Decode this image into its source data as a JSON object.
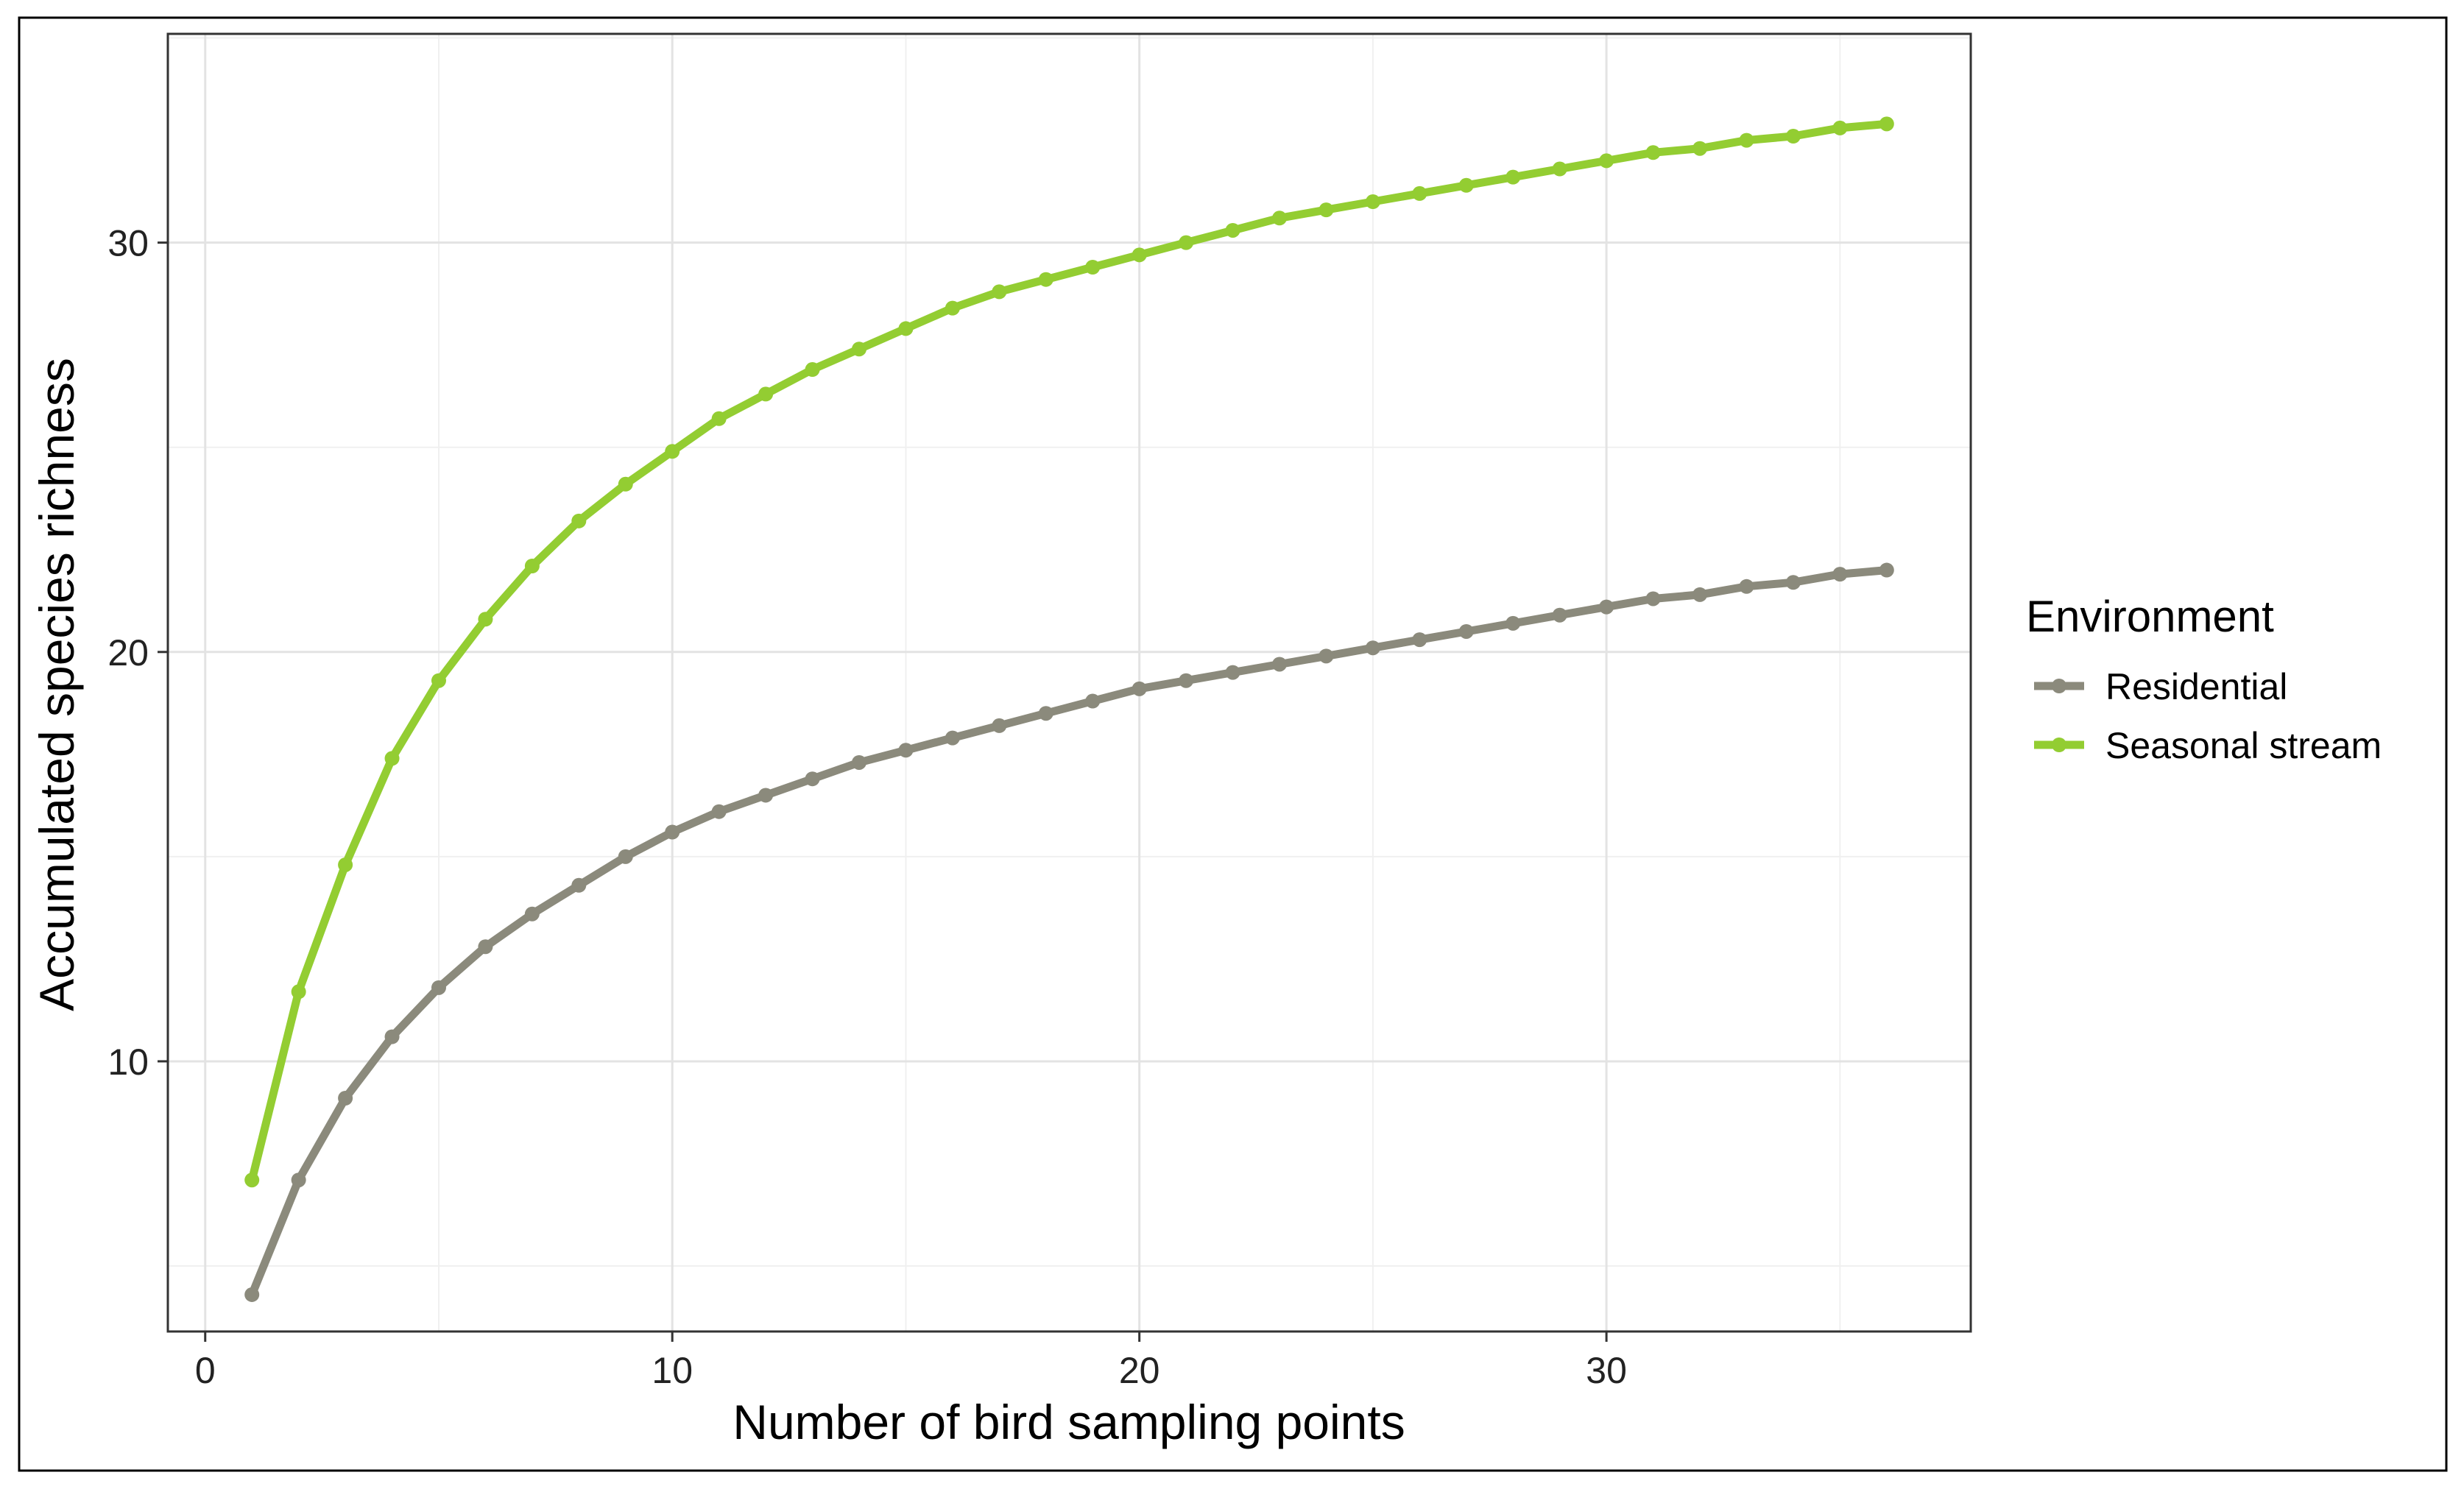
{
  "chart_data": {
    "type": "line",
    "title": "",
    "xlabel": "Number of bird sampling points",
    "ylabel": "Accumulated species richness",
    "xlim": [
      -0.8,
      37.8
    ],
    "ylim": [
      3.4,
      35.1
    ],
    "xticks": [
      0,
      10,
      20,
      30
    ],
    "yticks": [
      10,
      20,
      30
    ],
    "grid": true,
    "legend": {
      "title": "Environment",
      "placement": "right"
    },
    "x": [
      1,
      2,
      3,
      4,
      5,
      6,
      7,
      8,
      9,
      10,
      11,
      12,
      13,
      14,
      15,
      16,
      17,
      18,
      19,
      20,
      21,
      22,
      23,
      24,
      25,
      26,
      27,
      28,
      29,
      30,
      31,
      32,
      33,
      34,
      35,
      36
    ],
    "series": [
      {
        "name": "Residential",
        "color": "#8b8a7c",
        "values": [
          4.3,
          7.1,
          9.1,
          10.6,
          11.8,
          12.8,
          13.6,
          14.3,
          15.0,
          15.6,
          16.1,
          16.5,
          16.9,
          17.3,
          17.6,
          17.9,
          18.2,
          18.5,
          18.8,
          19.1,
          19.3,
          19.5,
          19.7,
          19.9,
          20.1,
          20.3,
          20.5,
          20.7,
          20.9,
          21.1,
          21.3,
          21.4,
          21.6,
          21.7,
          21.9,
          22.0
        ]
      },
      {
        "name": "Seasonal stream",
        "color": "#93cd32",
        "values": [
          7.1,
          11.7,
          14.8,
          17.4,
          19.3,
          20.8,
          22.1,
          23.2,
          24.1,
          24.9,
          25.7,
          26.3,
          26.9,
          27.4,
          27.9,
          28.4,
          28.8,
          29.1,
          29.4,
          29.7,
          30.0,
          30.3,
          30.6,
          30.8,
          31.0,
          31.2,
          31.4,
          31.6,
          31.8,
          32.0,
          32.2,
          32.3,
          32.5,
          32.6,
          32.8,
          32.9
        ]
      }
    ]
  }
}
